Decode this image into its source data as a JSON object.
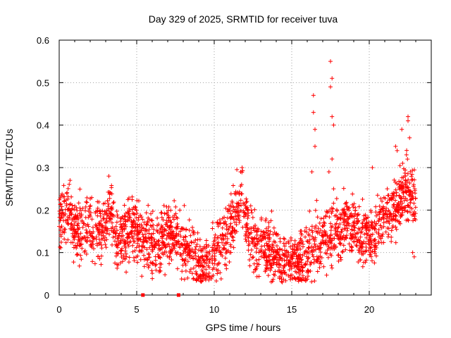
{
  "chart_data": {
    "type": "scatter",
    "title": "Day 329 of 2025, SRMTID for receiver tuva",
    "xlabel": "GPS time / hours",
    "ylabel": "SRMTID / TECUs",
    "xlim": [
      0,
      24
    ],
    "ylim": [
      0,
      0.6
    ],
    "x_ticks": [
      0,
      5,
      10,
      15,
      20
    ],
    "y_ticks": [
      0,
      0.1,
      0.2,
      0.3,
      0.4,
      0.5,
      0.6
    ],
    "x_tick_labels": [
      "0",
      "5",
      "10",
      "15",
      "20"
    ],
    "y_tick_labels": [
      "0",
      "0.1",
      "0.2",
      "0.3",
      "0.4",
      "0.5",
      "0.6"
    ],
    "grid": true,
    "marker": "+",
    "color": "#ff0000",
    "trend": [
      [
        0.0,
        0.18
      ],
      [
        0.5,
        0.21
      ],
      [
        1.0,
        0.16
      ],
      [
        1.5,
        0.14
      ],
      [
        2.0,
        0.17
      ],
      [
        2.5,
        0.15
      ],
      [
        3.0,
        0.16
      ],
      [
        3.3,
        0.21
      ],
      [
        3.6,
        0.13
      ],
      [
        4.0,
        0.12
      ],
      [
        4.5,
        0.16
      ],
      [
        5.0,
        0.15
      ],
      [
        5.5,
        0.13
      ],
      [
        6.0,
        0.12
      ],
      [
        6.5,
        0.11
      ],
      [
        7.0,
        0.15
      ],
      [
        7.5,
        0.14
      ],
      [
        8.0,
        0.12
      ],
      [
        8.5,
        0.1
      ],
      [
        9.0,
        0.07
      ],
      [
        9.5,
        0.07
      ],
      [
        10.0,
        0.1
      ],
      [
        10.5,
        0.13
      ],
      [
        11.0,
        0.15
      ],
      [
        11.5,
        0.2
      ],
      [
        11.8,
        0.24
      ],
      [
        12.2,
        0.16
      ],
      [
        12.5,
        0.12
      ],
      [
        13.0,
        0.11
      ],
      [
        13.5,
        0.11
      ],
      [
        14.0,
        0.09
      ],
      [
        14.5,
        0.09
      ],
      [
        15.0,
        0.08
      ],
      [
        15.5,
        0.08
      ],
      [
        16.0,
        0.09
      ],
      [
        16.5,
        0.12
      ],
      [
        17.0,
        0.13
      ],
      [
        17.5,
        0.14
      ],
      [
        18.0,
        0.15
      ],
      [
        18.5,
        0.17
      ],
      [
        19.0,
        0.16
      ],
      [
        19.5,
        0.14
      ],
      [
        20.0,
        0.13
      ],
      [
        20.5,
        0.16
      ],
      [
        21.0,
        0.19
      ],
      [
        21.5,
        0.2
      ],
      [
        22.0,
        0.23
      ],
      [
        22.5,
        0.24
      ],
      [
        23.0,
        0.21
      ]
    ],
    "spread": 0.035,
    "n_points": 2400,
    "outliers": [
      [
        16.4,
        0.47
      ],
      [
        16.4,
        0.43
      ],
      [
        16.5,
        0.39
      ],
      [
        16.5,
        0.35
      ],
      [
        16.3,
        0.29
      ],
      [
        17.5,
        0.55
      ],
      [
        17.6,
        0.51
      ],
      [
        17.5,
        0.49
      ],
      [
        17.6,
        0.42
      ],
      [
        17.7,
        0.4
      ],
      [
        17.6,
        0.32
      ],
      [
        17.4,
        0.29
      ],
      [
        17.7,
        0.25
      ],
      [
        21.7,
        0.35
      ],
      [
        21.8,
        0.34
      ],
      [
        22.1,
        0.39
      ],
      [
        22.5,
        0.42
      ],
      [
        22.5,
        0.41
      ],
      [
        22.6,
        0.37
      ],
      [
        22.4,
        0.33
      ],
      [
        11.8,
        0.3
      ],
      [
        11.7,
        0.29
      ],
      [
        3.2,
        0.28
      ],
      [
        0.7,
        0.27
      ],
      [
        20.2,
        0.3
      ],
      [
        22.8,
        0.1
      ],
      [
        22.9,
        0.09
      ]
    ],
    "zero_points": [
      [
        5.4,
        0.0
      ],
      [
        7.7,
        0.0
      ]
    ]
  }
}
